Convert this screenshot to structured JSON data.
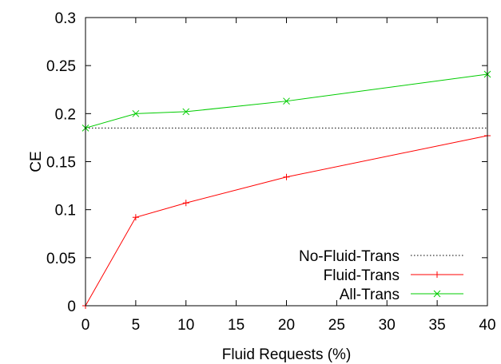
{
  "chart_data": {
    "type": "line",
    "xlabel": "Fluid Requests (%)",
    "ylabel": "CE",
    "xlim": [
      0,
      40
    ],
    "ylim": [
      0,
      0.3
    ],
    "xticks": [
      "0",
      "5",
      "10",
      "15",
      "20",
      "25",
      "30",
      "35",
      "40"
    ],
    "yticks": [
      "0",
      "0.05",
      "0.1",
      "0.15",
      "0.2",
      "0.25",
      "0.3"
    ],
    "grid": false,
    "legend_position": "bottom-right",
    "series": [
      {
        "name": "No-Fluid-Trans",
        "color": "#000000",
        "style": "dotted",
        "marker": "none",
        "x": [
          0,
          40
        ],
        "y": [
          0.185,
          0.185
        ]
      },
      {
        "name": "Fluid-Trans",
        "color": "#ff0000",
        "style": "solid",
        "marker": "plus",
        "x": [
          0,
          5,
          10,
          20,
          40
        ],
        "y": [
          0.0,
          0.092,
          0.107,
          0.134,
          0.177
        ]
      },
      {
        "name": "All-Trans",
        "color": "#00cc00",
        "style": "solid",
        "marker": "cross",
        "x": [
          0,
          5,
          10,
          20,
          40
        ],
        "y": [
          0.185,
          0.2,
          0.202,
          0.213,
          0.241
        ]
      }
    ]
  }
}
